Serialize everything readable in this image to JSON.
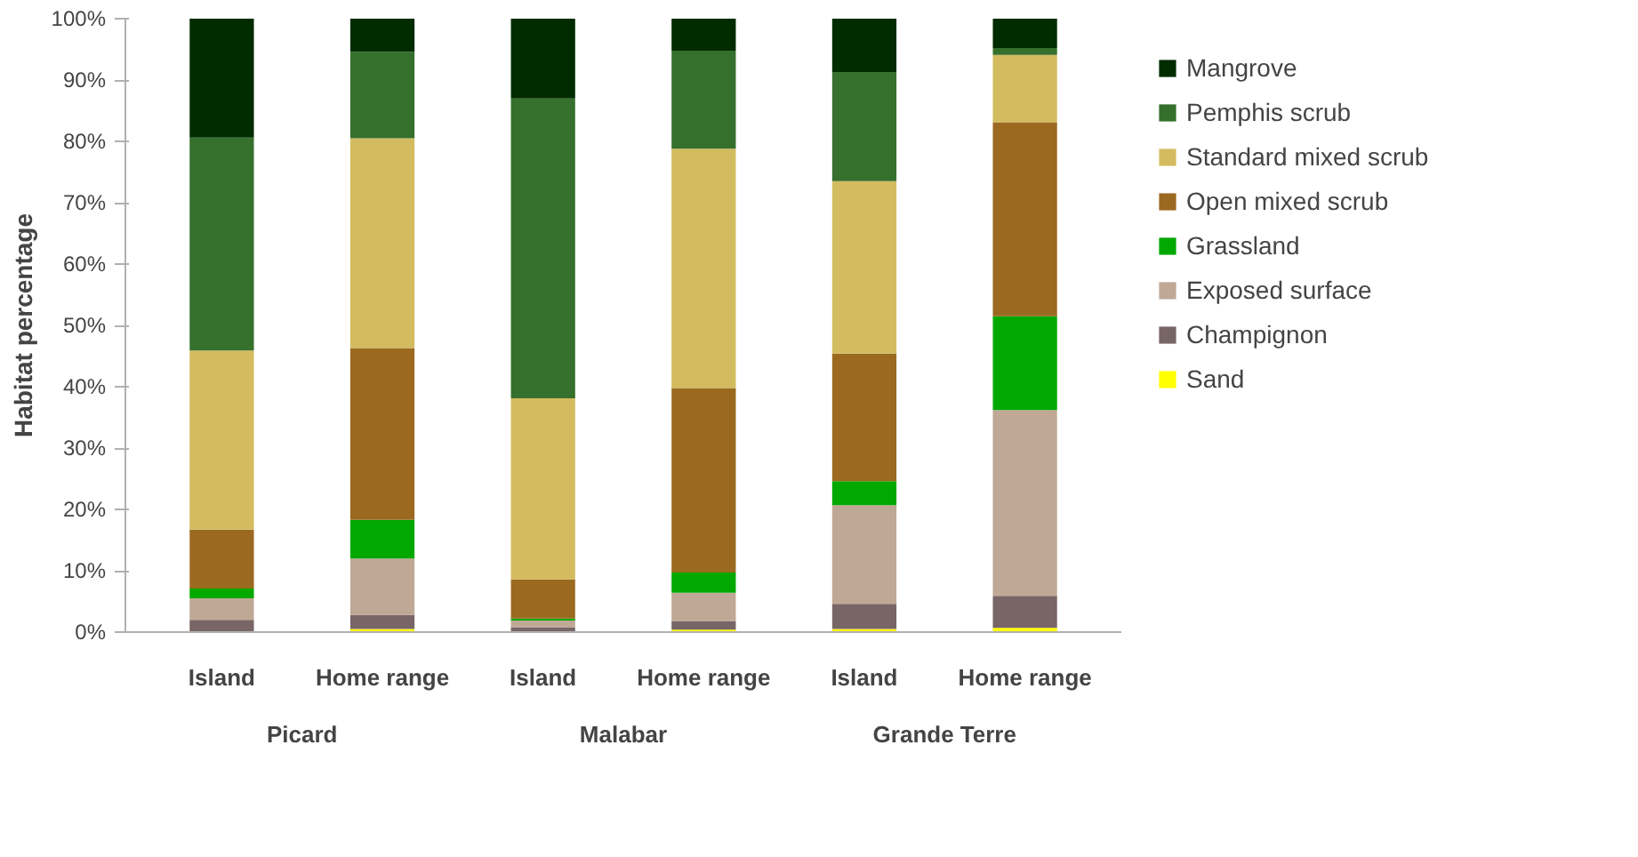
{
  "chart_data": {
    "type": "bar",
    "stacked": true,
    "ylabel": "Habitat percentage",
    "categories": [
      "Island",
      "Home range",
      "Island",
      "Home range",
      "Island",
      "Home range"
    ],
    "annotations": [
      "Picard",
      "Malabar",
      "Grande Terre"
    ],
    "ylim": [
      0,
      100
    ],
    "yticks": [
      {
        "value": 0,
        "label": "0%"
      },
      {
        "value": 10,
        "label": "10%"
      },
      {
        "value": 20,
        "label": "20%"
      },
      {
        "value": 30,
        "label": "30%"
      },
      {
        "value": 40,
        "label": "40%"
      },
      {
        "value": 50,
        "label": "50%"
      },
      {
        "value": 60,
        "label": "60%"
      },
      {
        "value": 70,
        "label": "70%"
      },
      {
        "value": 80,
        "label": "80%"
      },
      {
        "value": 90,
        "label": "90%"
      },
      {
        "value": 100,
        "label": "100%"
      }
    ],
    "grid": false,
    "legend": "right",
    "series": [
      {
        "name": "Sand",
        "color": "#ffff00",
        "values": [
          0,
          0.5,
          0,
          0.4,
          0.5,
          0.7
        ]
      },
      {
        "name": "Champignon",
        "color": "#786566",
        "values": [
          2.0,
          2.3,
          0.8,
          1.4,
          4.1,
          5.2
        ]
      },
      {
        "name": "Exposed surface",
        "color": "#c0a896",
        "values": [
          3.5,
          9.2,
          1.1,
          4.6,
          16.1,
          30.3
        ]
      },
      {
        "name": "Grassland",
        "color": "#00a800",
        "values": [
          1.6,
          6.3,
          0.3,
          3.3,
          3.9,
          15.3
        ]
      },
      {
        "name": "Open mixed scrub",
        "color": "#9c6921",
        "values": [
          9.6,
          28.0,
          6.4,
          30.1,
          20.8,
          31.6
        ]
      },
      {
        "name": "Standard mixed scrub",
        "color": "#d3bc5f",
        "values": [
          29.2,
          34.2,
          29.5,
          39.0,
          28.1,
          11.0
        ]
      },
      {
        "name": "Pemphis scrub",
        "color": "#35702c",
        "values": [
          34.7,
          14.1,
          48.9,
          16.0,
          17.8,
          1.1
        ]
      },
      {
        "name": "Mangrove",
        "color": "#002c00",
        "values": [
          19.4,
          5.4,
          13.0,
          5.2,
          8.7,
          4.8
        ]
      }
    ]
  }
}
